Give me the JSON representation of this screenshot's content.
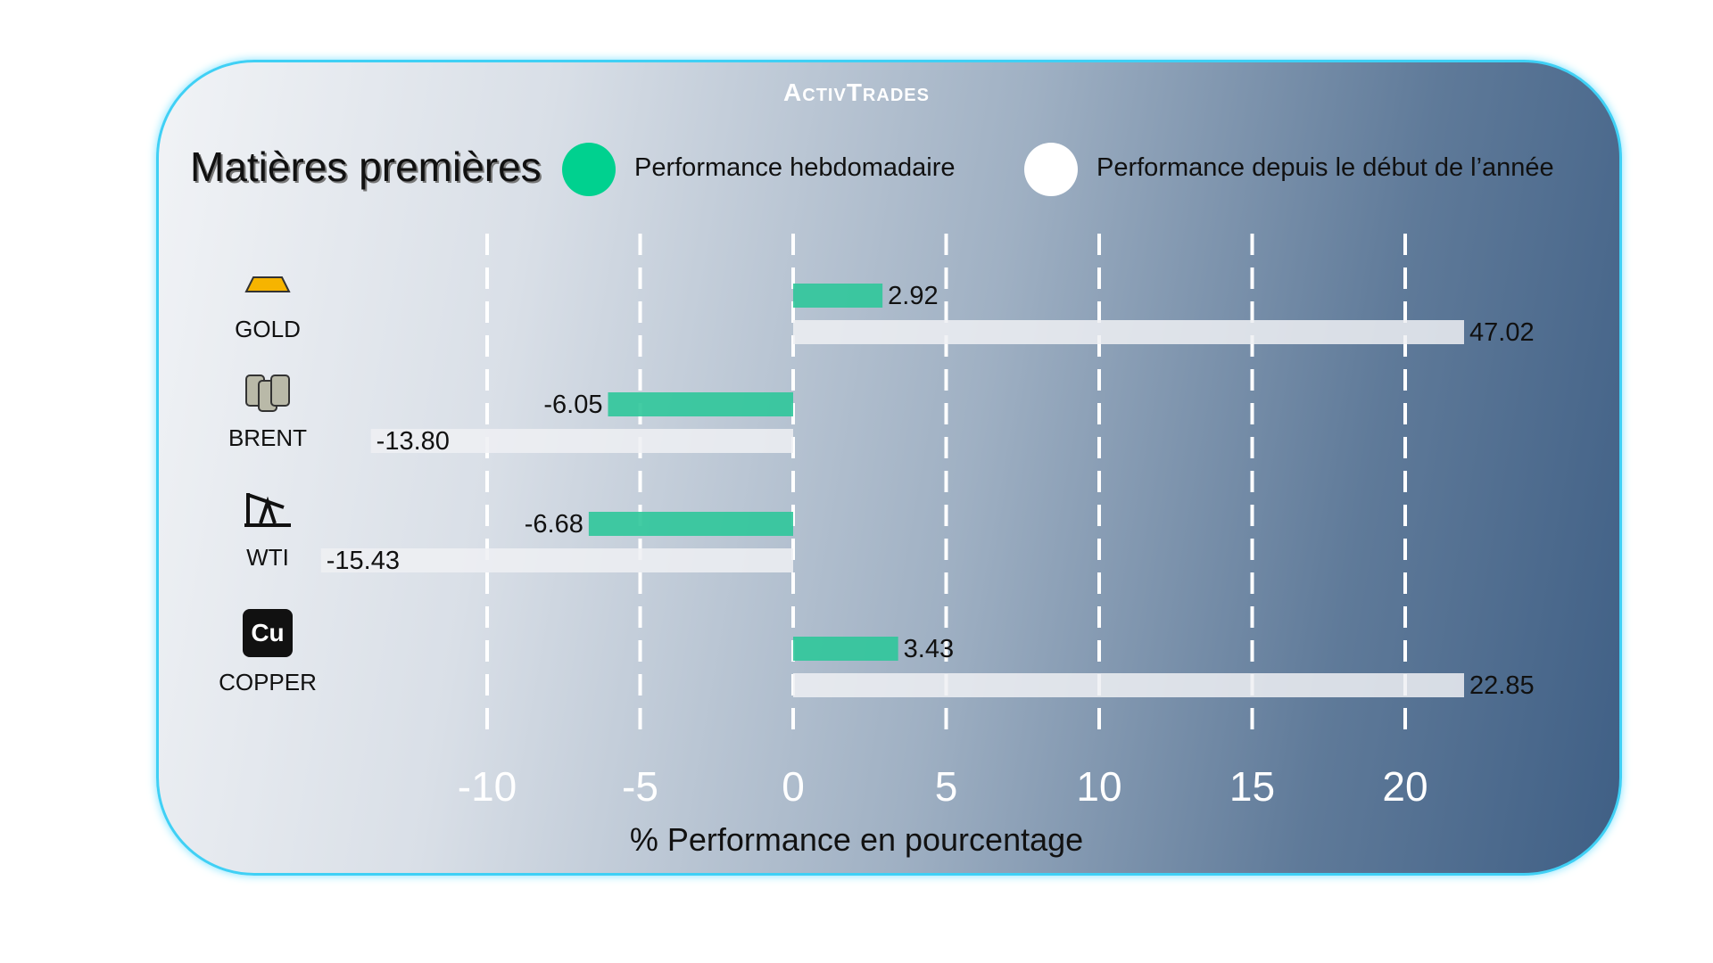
{
  "brand": "ActivTrades",
  "title": "Matières premières",
  "legend": [
    {
      "label": "Performance hebdomadaire",
      "color": "#00d18f"
    },
    {
      "label": "Performance depuis le début de l’année",
      "color": "#ffffff"
    }
  ],
  "chart_data": {
    "type": "bar",
    "orientation": "horizontal",
    "categories": [
      "GOLD",
      "BRENT",
      "WTI",
      "COPPER"
    ],
    "icons": [
      "gold-bars-icon",
      "oil-barrels-icon",
      "oil-pump-icon",
      "copper-element-icon"
    ],
    "series": [
      {
        "name": "Performance hebdomadaire",
        "color": "#2fc79a",
        "values": [
          2.92,
          -6.05,
          -6.68,
          3.43
        ],
        "labels": [
          "2.92",
          "-6.05",
          "-6.68",
          "3.43"
        ]
      },
      {
        "name": "Performance depuis le début de l’année",
        "color": "#eef0f3",
        "values": [
          47.02,
          -13.8,
          -15.43,
          22.85
        ],
        "labels": [
          "47.02",
          "-13.80",
          "-15.43",
          "22.85"
        ]
      }
    ],
    "xticks": [
      -10,
      -5,
      0,
      5,
      10,
      15,
      20
    ],
    "xtick_labels": [
      "-10",
      "-5",
      "0",
      "5",
      "10",
      "15",
      "20"
    ],
    "xlabel": "% Performance en pourcentage",
    "xlim": [
      -10,
      20
    ],
    "grid": "vertical dashed white"
  }
}
